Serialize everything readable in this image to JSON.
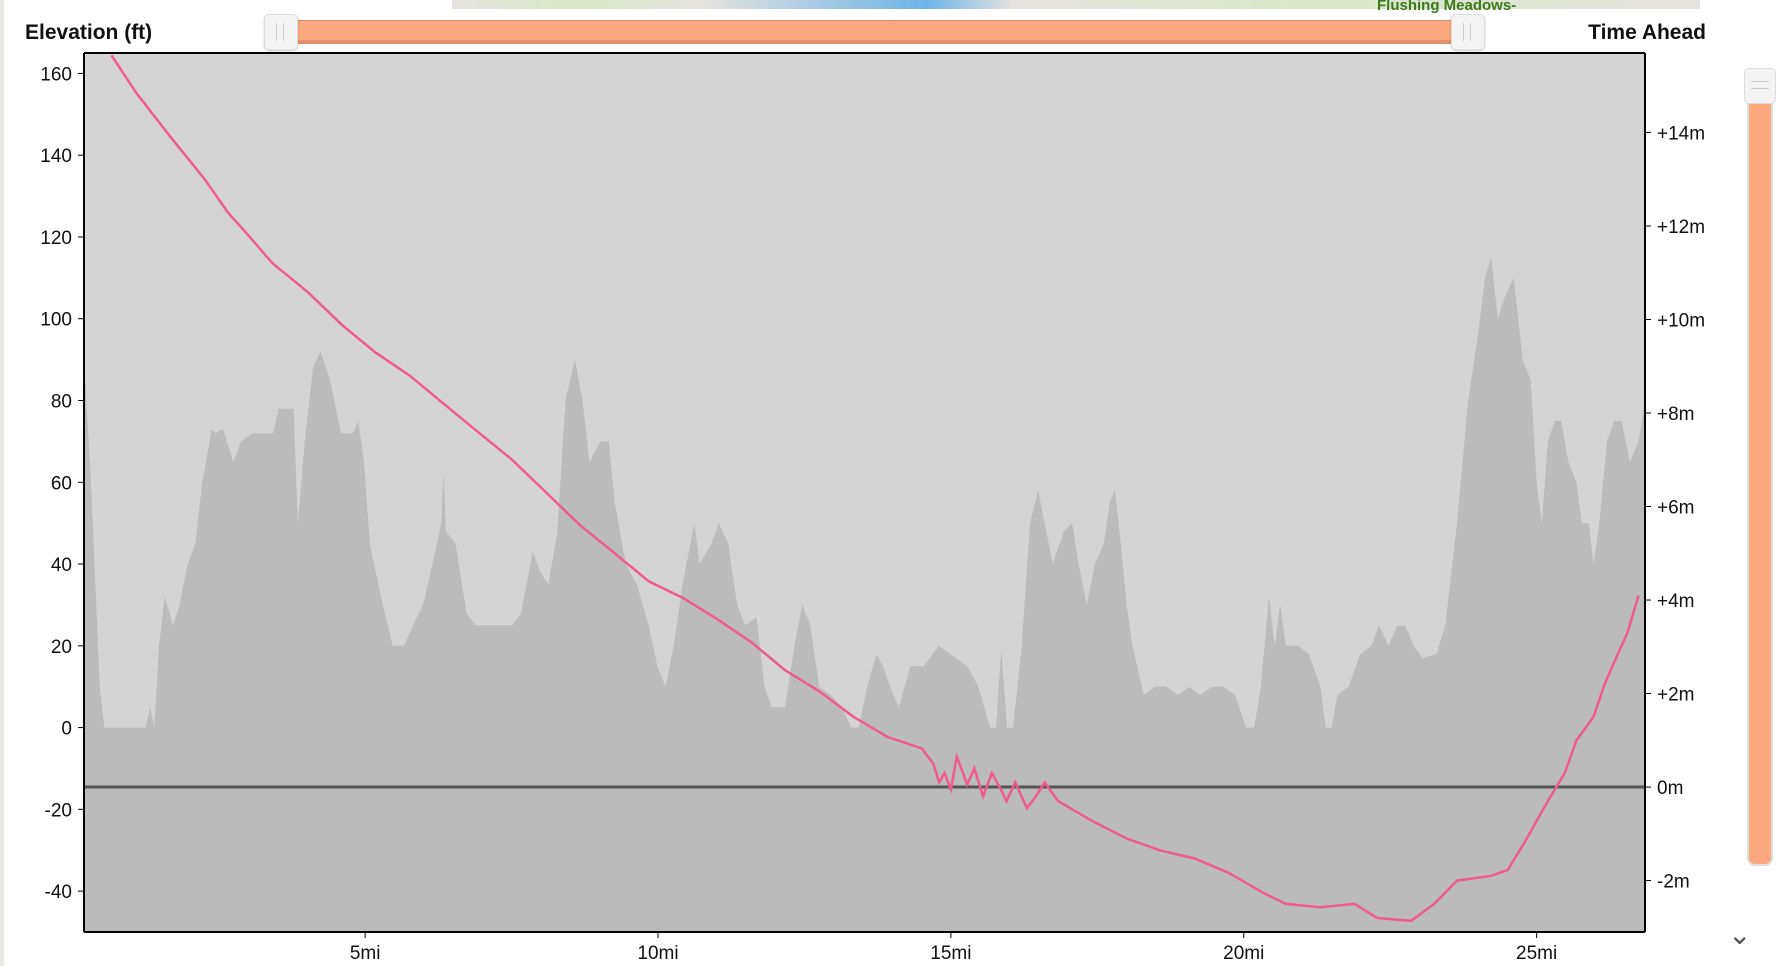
{
  "map": {
    "label": "Flushing Meadows-"
  },
  "chart_data": {
    "type": "area",
    "ylabel": "Elevation (ft)",
    "y2label": "Time Ahead",
    "xlim": [
      0.2,
      26.85
    ],
    "ylim": [
      -50,
      165
    ],
    "y2lim": [
      -3.1,
      15.7
    ],
    "x_ticks": [
      "5mi",
      "10mi",
      "15mi",
      "20mi",
      "25mi"
    ],
    "x_tick_values": [
      5,
      10,
      15,
      20,
      25
    ],
    "y_ticks": [
      -40,
      -20,
      0,
      20,
      40,
      60,
      80,
      100,
      120,
      140,
      160
    ],
    "y2_ticks": [
      "-2m",
      "0m",
      "+2m",
      "+4m",
      "+6m",
      "+8m",
      "+10m",
      "+12m",
      "+14m"
    ],
    "y2_tick_values": [
      -2,
      0,
      2,
      4,
      6,
      8,
      10,
      12,
      14
    ],
    "reference_line": 0,
    "colors": {
      "background": "#d4d4d4",
      "elevation": "#bbbbbb",
      "time_ahead": "#ef5b8d",
      "reference": "#444444"
    },
    "series": [
      {
        "axis": "left",
        "kind": "area",
        "points": [
          [
            0.2,
            90
          ],
          [
            0.32,
            60
          ],
          [
            0.47,
            10
          ],
          [
            0.55,
            0
          ],
          [
            1.25,
            0
          ],
          [
            1.33,
            5
          ],
          [
            1.4,
            0
          ],
          [
            1.48,
            20
          ],
          [
            1.58,
            32
          ],
          [
            1.72,
            25
          ],
          [
            1.83,
            30
          ],
          [
            1.97,
            40
          ],
          [
            2.1,
            45
          ],
          [
            2.22,
            60
          ],
          [
            2.38,
            73
          ],
          [
            2.45,
            72
          ],
          [
            2.57,
            73
          ],
          [
            2.75,
            65
          ],
          [
            2.88,
            70
          ],
          [
            3.08,
            72
          ],
          [
            3.43,
            72
          ],
          [
            3.52,
            78
          ],
          [
            3.78,
            78
          ],
          [
            3.85,
            50
          ],
          [
            3.97,
            70
          ],
          [
            4.11,
            88
          ],
          [
            4.24,
            92
          ],
          [
            4.4,
            85
          ],
          [
            4.59,
            72
          ],
          [
            4.79,
            72
          ],
          [
            4.88,
            75
          ],
          [
            4.98,
            65
          ],
          [
            5.08,
            45
          ],
          [
            5.27,
            32
          ],
          [
            5.47,
            20
          ],
          [
            5.66,
            20
          ],
          [
            5.85,
            26
          ],
          [
            5.99,
            30
          ],
          [
            6.15,
            40
          ],
          [
            6.3,
            50
          ],
          [
            6.34,
            62
          ],
          [
            6.38,
            48
          ],
          [
            6.54,
            45
          ],
          [
            6.73,
            28
          ],
          [
            6.88,
            25
          ],
          [
            7.02,
            25
          ],
          [
            7.31,
            25
          ],
          [
            7.51,
            25
          ],
          [
            7.66,
            28
          ],
          [
            7.86,
            43
          ],
          [
            7.99,
            38
          ],
          [
            8.13,
            35
          ],
          [
            8.28,
            48
          ],
          [
            8.42,
            80
          ],
          [
            8.58,
            90
          ],
          [
            8.71,
            80
          ],
          [
            8.83,
            65
          ],
          [
            9.02,
            70
          ],
          [
            9.16,
            70
          ],
          [
            9.26,
            55
          ],
          [
            9.45,
            40
          ],
          [
            9.64,
            35
          ],
          [
            9.84,
            25
          ],
          [
            9.99,
            15
          ],
          [
            10.13,
            10
          ],
          [
            10.27,
            20
          ],
          [
            10.42,
            35
          ],
          [
            10.62,
            50
          ],
          [
            10.71,
            40
          ],
          [
            10.91,
            45
          ],
          [
            11.04,
            50
          ],
          [
            11.2,
            45
          ],
          [
            11.35,
            30
          ],
          [
            11.49,
            25
          ],
          [
            11.68,
            27
          ],
          [
            11.82,
            10
          ],
          [
            11.94,
            5
          ],
          [
            12.17,
            5
          ],
          [
            12.33,
            20
          ],
          [
            12.46,
            30
          ],
          [
            12.6,
            25
          ],
          [
            12.75,
            10
          ],
          [
            12.95,
            8
          ],
          [
            13.14,
            5
          ],
          [
            13.3,
            0
          ],
          [
            13.43,
            0
          ],
          [
            13.57,
            10
          ],
          [
            13.73,
            18
          ],
          [
            13.84,
            15
          ],
          [
            13.96,
            10
          ],
          [
            14.11,
            5
          ],
          [
            14.31,
            15
          ],
          [
            14.54,
            15
          ],
          [
            14.79,
            20
          ],
          [
            14.99,
            18
          ],
          [
            15.28,
            15
          ],
          [
            15.47,
            10
          ],
          [
            15.57,
            5
          ],
          [
            15.67,
            0
          ],
          [
            15.77,
            0
          ],
          [
            15.86,
            19
          ],
          [
            15.96,
            0
          ],
          [
            16.06,
            0
          ],
          [
            16.21,
            20
          ],
          [
            16.35,
            50
          ],
          [
            16.49,
            58
          ],
          [
            16.6,
            50
          ],
          [
            16.74,
            40
          ],
          [
            16.93,
            48
          ],
          [
            17.07,
            50
          ],
          [
            17.18,
            40
          ],
          [
            17.32,
            30
          ],
          [
            17.46,
            40
          ],
          [
            17.61,
            45
          ],
          [
            17.71,
            55
          ],
          [
            17.8,
            58
          ],
          [
            17.9,
            45
          ],
          [
            18.0,
            30
          ],
          [
            18.1,
            20
          ],
          [
            18.29,
            8
          ],
          [
            18.49,
            10
          ],
          [
            18.68,
            10
          ],
          [
            18.88,
            8
          ],
          [
            19.07,
            10
          ],
          [
            19.26,
            8
          ],
          [
            19.46,
            10
          ],
          [
            19.65,
            10
          ],
          [
            19.85,
            8
          ],
          [
            20.04,
            0
          ],
          [
            20.18,
            0
          ],
          [
            20.29,
            10
          ],
          [
            20.43,
            32
          ],
          [
            20.53,
            20
          ],
          [
            20.62,
            30
          ],
          [
            20.72,
            20
          ],
          [
            20.92,
            20
          ],
          [
            21.11,
            18
          ],
          [
            21.31,
            10
          ],
          [
            21.4,
            0
          ],
          [
            21.5,
            0
          ],
          [
            21.6,
            8
          ],
          [
            21.79,
            10
          ],
          [
            21.99,
            18
          ],
          [
            22.18,
            20
          ],
          [
            22.31,
            25
          ],
          [
            22.47,
            20
          ],
          [
            22.62,
            25
          ],
          [
            22.76,
            25
          ],
          [
            22.9,
            20
          ],
          [
            23.05,
            17
          ],
          [
            23.29,
            18
          ],
          [
            23.44,
            25
          ],
          [
            23.64,
            50
          ],
          [
            23.83,
            80
          ],
          [
            23.99,
            95
          ],
          [
            24.12,
            110
          ],
          [
            24.22,
            115
          ],
          [
            24.34,
            100
          ],
          [
            24.45,
            105
          ],
          [
            24.61,
            110
          ],
          [
            24.76,
            90
          ],
          [
            24.9,
            85
          ],
          [
            25.0,
            60
          ],
          [
            25.09,
            50
          ],
          [
            25.19,
            70
          ],
          [
            25.31,
            75
          ],
          [
            25.42,
            75
          ],
          [
            25.54,
            65
          ],
          [
            25.68,
            60
          ],
          [
            25.77,
            50
          ],
          [
            25.89,
            50
          ],
          [
            25.97,
            40
          ],
          [
            26.07,
            50
          ],
          [
            26.2,
            70
          ],
          [
            26.32,
            75
          ],
          [
            26.45,
            75
          ],
          [
            26.59,
            65
          ],
          [
            26.74,
            70
          ],
          [
            26.86,
            80
          ]
        ]
      },
      {
        "axis": "right",
        "kind": "line",
        "points": [
          [
            0.67,
            15.65
          ],
          [
            1.09,
            14.85
          ],
          [
            1.68,
            13.9
          ],
          [
            2.26,
            13.0
          ],
          [
            2.65,
            12.3
          ],
          [
            3.04,
            11.75
          ],
          [
            3.42,
            11.2
          ],
          [
            4.01,
            10.6
          ],
          [
            4.59,
            9.9
          ],
          [
            5.17,
            9.3
          ],
          [
            5.76,
            8.8
          ],
          [
            6.34,
            8.2
          ],
          [
            6.92,
            7.6
          ],
          [
            7.51,
            7.0
          ],
          [
            8.09,
            6.3
          ],
          [
            8.67,
            5.6
          ],
          [
            9.26,
            5.0
          ],
          [
            9.84,
            4.4
          ],
          [
            10.42,
            4.05
          ],
          [
            11.0,
            3.6
          ],
          [
            11.59,
            3.1
          ],
          [
            12.17,
            2.5
          ],
          [
            12.75,
            2.05
          ],
          [
            13.34,
            1.5
          ],
          [
            13.92,
            1.07
          ],
          [
            14.5,
            0.83
          ],
          [
            14.7,
            0.5
          ],
          [
            14.8,
            0.1
          ],
          [
            14.89,
            0.3
          ],
          [
            15.0,
            -0.05
          ],
          [
            15.1,
            0.65
          ],
          [
            15.28,
            0.05
          ],
          [
            15.4,
            0.4
          ],
          [
            15.55,
            -0.2
          ],
          [
            15.7,
            0.3
          ],
          [
            15.86,
            -0.07
          ],
          [
            15.95,
            -0.3
          ],
          [
            16.1,
            0.1
          ],
          [
            16.3,
            -0.45
          ],
          [
            16.45,
            -0.2
          ],
          [
            16.6,
            0.1
          ],
          [
            16.83,
            -0.3
          ],
          [
            17.42,
            -0.73
          ],
          [
            18.0,
            -1.1
          ],
          [
            18.58,
            -1.36
          ],
          [
            19.17,
            -1.53
          ],
          [
            19.75,
            -1.84
          ],
          [
            20.33,
            -2.26
          ],
          [
            20.72,
            -2.5
          ],
          [
            21.31,
            -2.57
          ],
          [
            21.89,
            -2.5
          ],
          [
            22.28,
            -2.8
          ],
          [
            22.86,
            -2.86
          ],
          [
            23.25,
            -2.5
          ],
          [
            23.64,
            -2.0
          ],
          [
            24.22,
            -1.9
          ],
          [
            24.51,
            -1.77
          ],
          [
            24.8,
            -1.17
          ],
          [
            25.19,
            -0.3
          ],
          [
            25.48,
            0.3
          ],
          [
            25.68,
            1.0
          ],
          [
            25.97,
            1.5
          ],
          [
            26.16,
            2.2
          ],
          [
            26.36,
            2.77
          ],
          [
            26.55,
            3.3
          ],
          [
            26.74,
            4.1
          ]
        ]
      }
    ]
  },
  "sliders": {
    "range_start": 0,
    "range_end": 1,
    "vertical_level": 1
  }
}
